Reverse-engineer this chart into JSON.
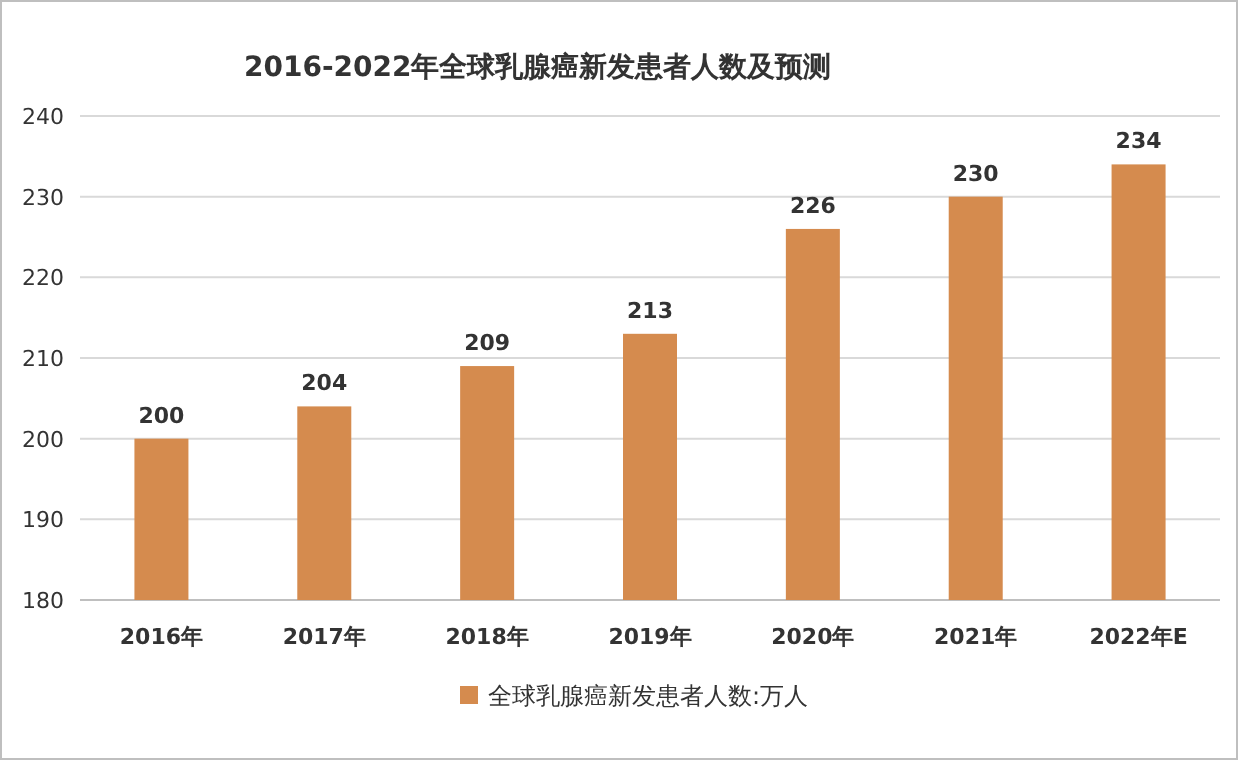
{
  "chart_data": {
    "type": "bar",
    "title": "2016-2022年全球乳腺癌新发患者人数及预测",
    "categories": [
      "2016年",
      "2017年",
      "2018年",
      "2019年",
      "2020年",
      "2021年",
      "2022年E"
    ],
    "series": [
      {
        "name": "全球乳腺癌新发患者人数:万人",
        "color": "#d58b4e",
        "values": [
          200,
          204,
          209,
          213,
          226,
          230,
          234
        ]
      }
    ],
    "ylim": [
      180,
      240
    ],
    "yticks": [
      180,
      190,
      200,
      210,
      220,
      230,
      240
    ],
    "grid": "y",
    "legend": "bottom",
    "data_labels": true
  }
}
